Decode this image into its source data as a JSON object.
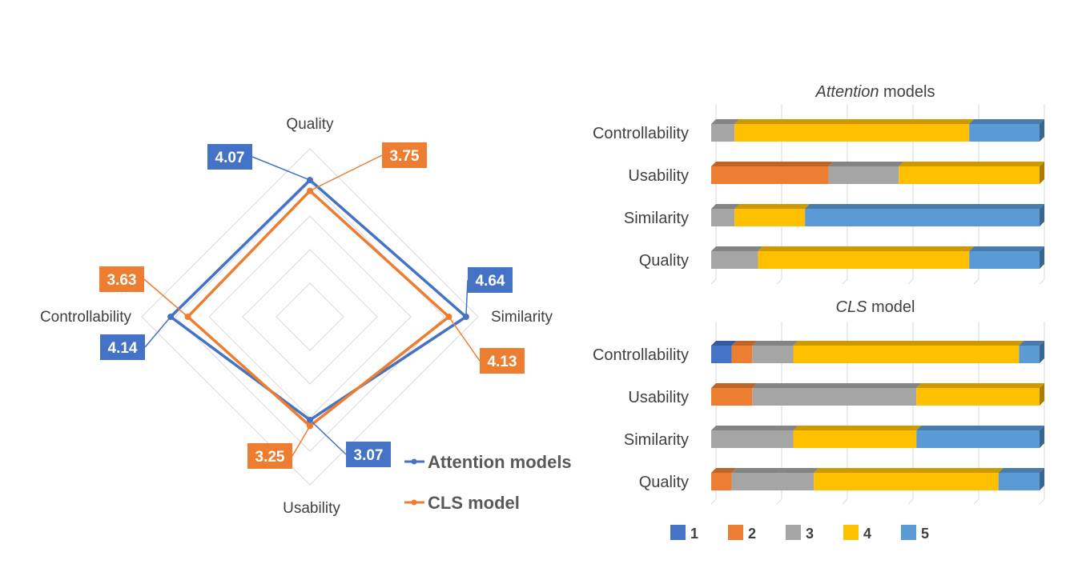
{
  "colors": {
    "attention": "#4472C4",
    "cls": "#ED7D31",
    "level1": "#4472C4",
    "level2": "#ED7D31",
    "level3": "#A5A5A5",
    "level4": "#FFC000",
    "level5": "#5B9BD5",
    "grid": "#D9D9D9",
    "text": "#404040"
  },
  "chart_data": [
    {
      "type": "radar",
      "axes": [
        "Quality",
        "Similarity",
        "Usability",
        "Controllability"
      ],
      "range": [
        0,
        5
      ],
      "series": [
        {
          "name": "Attention models",
          "values": [
            4.07,
            4.64,
            3.07,
            4.14
          ],
          "labels": [
            "4.07",
            "4.64",
            "3.07",
            "4.14"
          ]
        },
        {
          "name": "CLS model",
          "values": [
            3.75,
            4.13,
            3.25,
            3.63
          ],
          "labels": [
            "3.75",
            "4.13",
            "3.25",
            "3.63"
          ]
        }
      ],
      "legend_position": "bottom-right"
    },
    {
      "type": "bar",
      "orientation": "horizontal",
      "stacked": "percent",
      "title_italic": "Attention",
      "title_rest": " models",
      "categories": [
        "Controllability",
        "Usability",
        "Similarity",
        "Quality"
      ],
      "series": [
        {
          "name": "1",
          "values": [
            0,
            0,
            0,
            0
          ]
        },
        {
          "name": "2",
          "values": [
            0,
            5,
            0,
            0
          ]
        },
        {
          "name": "3",
          "values": [
            1,
            3,
            1,
            2
          ]
        },
        {
          "name": "4",
          "values": [
            10,
            6,
            3,
            9
          ]
        },
        {
          "name": "5",
          "values": [
            3,
            0,
            10,
            3
          ]
        }
      ]
    },
    {
      "type": "bar",
      "orientation": "horizontal",
      "stacked": "percent",
      "title_italic": "CLS",
      "title_rest": " model",
      "categories": [
        "Controllability",
        "Usability",
        "Similarity",
        "Quality"
      ],
      "series": [
        {
          "name": "1",
          "values": [
            1,
            0,
            0,
            0
          ]
        },
        {
          "name": "2",
          "values": [
            1,
            2,
            0,
            1
          ]
        },
        {
          "name": "3",
          "values": [
            2,
            8,
            4,
            4
          ]
        },
        {
          "name": "4",
          "values": [
            11,
            6,
            6,
            9
          ]
        },
        {
          "name": "5",
          "values": [
            1,
            0,
            6,
            2
          ]
        }
      ],
      "legend": [
        "1",
        "2",
        "3",
        "4",
        "5"
      ],
      "legend_position": "bottom"
    }
  ]
}
